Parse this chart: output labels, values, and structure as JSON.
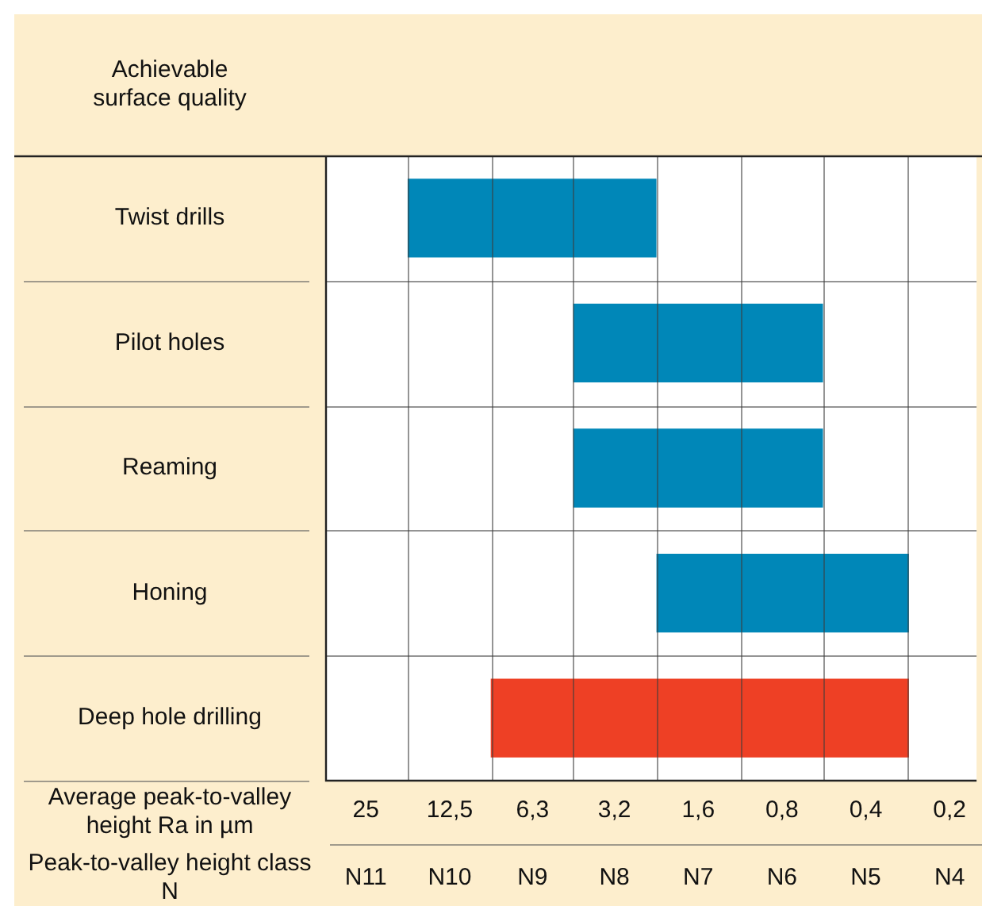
{
  "chart_data": {
    "type": "bar",
    "orientation": "horizontal",
    "title": "Achievable surface quality",
    "xlabel": "Average peak-to-valley height Ra in µm",
    "x2label": "Peak-to-valley height class N",
    "categories": [
      "Twist drills",
      "Pilot holes",
      "Reaming",
      "Honing",
      "Deep hole drilling"
    ],
    "base": [
      2.26,
      0.57,
      0.57,
      0.28,
      0.28
    ],
    "values": [
      15.44,
      3.93,
      3.93,
      1.98,
      8.62
    ],
    "log": "x",
    "colors": [
      "#0087b8",
      "#0087b8",
      "#0087b8",
      "#0087b8",
      "#ee4025"
    ],
    "xlim": [
      35,
      0.16
    ],
    "xticks": [
      25,
      {
        "value": 12.5,
        "label": "12,5"
      },
      {
        "value": 6.3,
        "label": "6,3"
      },
      {
        "value": 3.2,
        "label": "3,2"
      },
      {
        "value": 1.6,
        "label": "1,6"
      },
      {
        "value": 0.8,
        "label": "0,8"
      },
      {
        "value": 0.4,
        "label": "0,4"
      },
      {
        "value": 0.2,
        "label": "0,2"
      }
    ],
    "annotations": [
      "N11",
      "N10",
      "N9",
      "N8",
      "N7",
      "N6",
      "N5",
      "N4"
    ],
    "grid": true
  }
}
